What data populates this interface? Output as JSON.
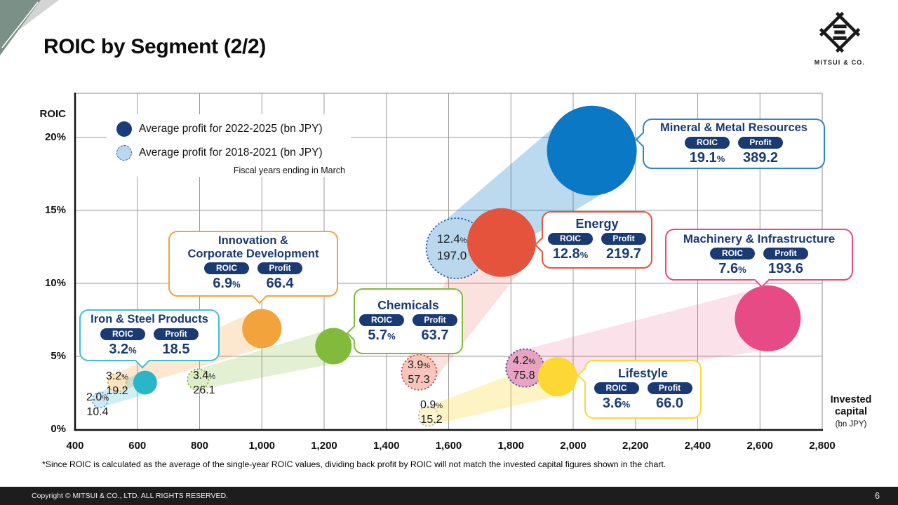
{
  "slide": {
    "title": "ROIC by Segment (2/2)",
    "footnote": "*Since ROIC is calculated as the average of the single-year ROIC values, dividing back profit by ROIC will not match the invested capital figures shown in the chart.",
    "footer": "Copyright © MITSUI & CO., LTD. ALL RIGHTS RESERVED.",
    "page_number": "6",
    "logo_text": "MITSUI & CO."
  },
  "legend": {
    "current": "Average profit for 2022-2025 (bn JPY)",
    "past": "Average profit for 2018-2021 (bn JPY)",
    "note": "Fiscal years ending in March"
  },
  "axes": {
    "y_label": "ROIC",
    "x_label_line1": "Invested capital",
    "x_label_line2": "(bn JPY)",
    "y_ticks": [
      "0%",
      "5%",
      "10%",
      "15%",
      "20%"
    ],
    "x_ticks": [
      "400",
      "600",
      "800",
      "1,000",
      "1,200",
      "1,400",
      "1,600",
      "1,800",
      "2,000",
      "2,200",
      "2,400",
      "2,600",
      "2,800"
    ]
  },
  "chart_data": {
    "type": "scatter",
    "title": "ROIC by Segment (2/2)",
    "x_axis": {
      "label": "Invested capital (bn JPY)",
      "min": 400,
      "max": 2800,
      "tick_step": 200,
      "gridlines": true
    },
    "y_axis": {
      "label": "ROIC",
      "unit": "%",
      "min": 0,
      "max": 20,
      "tick_step": 5,
      "gridlines": true
    },
    "bubble_size_encodes": "average profit (bn JPY)",
    "series": [
      {
        "key": "current",
        "name": "Average profit for 2022-2025 (bn JPY)"
      },
      {
        "key": "past",
        "name": "Average profit for 2018-2021 (bn JPY)"
      }
    ],
    "note": "Fiscal years ending in March",
    "callout_badges": [
      "ROIC",
      "Profit"
    ],
    "segments": [
      {
        "name": "Mineral & Metal Resources",
        "color": "#0b78c5",
        "border_color": "#2e86c8",
        "past_fill": "#b9d8ee",
        "past_stroke": "#2b5ca8",
        "beam_rgba": "rgba(11,120,197,0.28)",
        "current": {
          "roic_pct": 19.1,
          "profit_bn": 389.2,
          "invested_capital_bn_est": 2060
        },
        "past": {
          "roic_pct": 12.4,
          "profit_bn": 197.0,
          "invested_capital_bn_est": 1625
        }
      },
      {
        "name": "Energy",
        "color": "#e5533d",
        "border_color": "#e5533d",
        "past_fill": "#f6c6bc",
        "past_stroke": "#d8503c",
        "beam_rgba": "rgba(229,83,61,0.17)",
        "current": {
          "roic_pct": 12.8,
          "profit_bn": 219.7,
          "invested_capital_bn_est": 1770
        },
        "past": {
          "roic_pct": 3.9,
          "profit_bn": 57.3,
          "invested_capital_bn_est": 1505
        }
      },
      {
        "name": "Machinery & Infrastructure",
        "color": "#e64b85",
        "border_color": "#e64b85",
        "past_fill": "#e8a3c2",
        "past_stroke": "#4a4f9a",
        "beam_rgba": "rgba(230,75,133,0.17)",
        "current": {
          "roic_pct": 7.6,
          "profit_bn": 193.6,
          "invested_capital_bn_est": 2625
        },
        "past": {
          "roic_pct": 4.2,
          "profit_bn": 75.8,
          "invested_capital_bn_est": 1845
        }
      },
      {
        "name": "Innovation & Corporate Development",
        "color": "#f3a33b",
        "border_color": "#f3a33b",
        "past_fill": "#fbe2c0",
        "past_stroke": "#e8a24a",
        "beam_rgba": "rgba(243,163,59,0.25)",
        "current": {
          "roic_pct": 6.9,
          "profit_bn": 66.4,
          "invested_capital_bn_est": 1000
        },
        "past": {
          "roic_pct": 3.2,
          "profit_bn": 19.2,
          "invested_capital_bn_est": 535
        }
      },
      {
        "name": "Chemicals",
        "color": "#82ba3c",
        "border_color": "#82ba3c",
        "past_fill": "#ddedc6",
        "past_stroke": "#84b84a",
        "beam_rgba": "rgba(130,186,60,0.22)",
        "current": {
          "roic_pct": 5.7,
          "profit_bn": 63.7,
          "invested_capital_bn_est": 1230
        },
        "past": {
          "roic_pct": 3.4,
          "profit_bn": 26.1,
          "invested_capital_bn_est": 795
        }
      },
      {
        "name": "Iron & Steel Products",
        "color": "#2ab5c9",
        "border_color": "#3fc0d4",
        "past_fill": "#cfe8f4",
        "past_stroke": "#5aa8c8",
        "beam_rgba": "rgba(42,181,201,0.22)",
        "current": {
          "roic_pct": 3.2,
          "profit_bn": 18.5,
          "invested_capital_bn_est": 625
        },
        "past": {
          "roic_pct": 2.0,
          "profit_bn": 10.4,
          "invested_capital_bn_est": 480
        }
      },
      {
        "name": "Lifestyle",
        "color": "#fdd835",
        "border_color": "#fdd835",
        "past_fill": "#fcf4cc",
        "past_stroke": "#a8bcd4",
        "beam_rgba": "rgba(253,216,53,0.30)",
        "current": {
          "roic_pct": 3.6,
          "profit_bn": 66.0,
          "invested_capital_bn_est": 1950
        },
        "past": {
          "roic_pct": 0.9,
          "profit_bn": 15.2,
          "invested_capital_bn_est": 1535
        }
      }
    ]
  }
}
